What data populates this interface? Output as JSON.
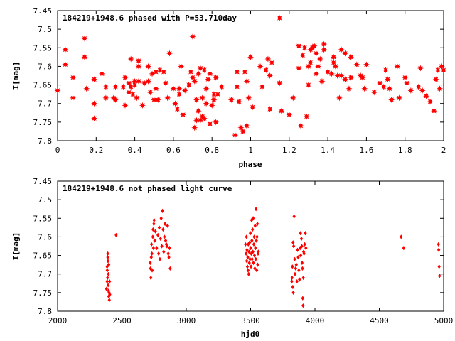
{
  "colors": {
    "marker": "#ff0000",
    "axes": "#000000",
    "background": "#ffffff"
  },
  "chart_data": [
    {
      "type": "scatter",
      "title": "184219+1948.6 phased with P=53.710day",
      "xlabel": "phase",
      "ylabel": "I[mag]",
      "xlim": [
        0,
        2
      ],
      "ylim": [
        7.8,
        7.45
      ],
      "y_inverted": true,
      "grid": false,
      "legend": "none",
      "marker": "filled-star",
      "x_ticks": [
        0,
        0.2,
        0.4,
        0.6,
        0.8,
        1,
        1.2,
        1.4,
        1.6,
        1.8,
        2
      ],
      "x_tick_labels": [
        "0",
        "0.2",
        "0.4",
        "0.6",
        "0.8",
        "1",
        "1.2",
        "1.4",
        "1.6",
        "1.8",
        "2"
      ],
      "y_ticks": [
        7.45,
        7.5,
        7.55,
        7.6,
        7.65,
        7.7,
        7.75,
        7.8
      ],
      "y_tick_labels": [
        "7.45",
        "7.5",
        "7.55",
        "7.6",
        "7.65",
        "7.7",
        "7.75",
        "7.8"
      ],
      "points": [
        [
          0.0,
          7.665
        ],
        [
          0.04,
          7.555
        ],
        [
          0.04,
          7.595
        ],
        [
          0.08,
          7.63
        ],
        [
          0.08,
          7.685
        ],
        [
          0.14,
          7.525
        ],
        [
          0.14,
          7.575
        ],
        [
          0.15,
          7.66
        ],
        [
          0.19,
          7.635
        ],
        [
          0.19,
          7.7
        ],
        [
          0.19,
          7.74
        ],
        [
          0.23,
          7.62
        ],
        [
          0.25,
          7.655
        ],
        [
          0.25,
          7.685
        ],
        [
          0.29,
          7.685
        ],
        [
          0.3,
          7.655
        ],
        [
          0.3,
          7.69
        ],
        [
          0.34,
          7.655
        ],
        [
          0.35,
          7.63
        ],
        [
          0.35,
          7.705
        ],
        [
          0.37,
          7.645
        ],
        [
          0.37,
          7.67
        ],
        [
          0.38,
          7.655
        ],
        [
          0.38,
          7.58
        ],
        [
          0.39,
          7.675
        ],
        [
          0.4,
          7.65
        ],
        [
          0.4,
          7.64
        ],
        [
          0.41,
          7.685
        ],
        [
          0.42,
          7.585
        ],
        [
          0.42,
          7.6
        ],
        [
          0.42,
          7.64
        ],
        [
          0.44,
          7.705
        ],
        [
          0.45,
          7.645
        ],
        [
          0.47,
          7.6
        ],
        [
          0.47,
          7.64
        ],
        [
          0.48,
          7.67
        ],
        [
          0.49,
          7.62
        ],
        [
          0.5,
          7.69
        ],
        [
          0.51,
          7.615
        ],
        [
          0.51,
          7.66
        ],
        [
          0.52,
          7.69
        ],
        [
          0.53,
          7.61
        ],
        [
          0.55,
          7.615
        ],
        [
          0.56,
          7.645
        ],
        [
          0.57,
          7.685
        ],
        [
          0.58,
          7.565
        ],
        [
          0.6,
          7.66
        ],
        [
          0.61,
          7.7
        ],
        [
          0.62,
          7.715
        ],
        [
          0.63,
          7.675
        ],
        [
          0.63,
          7.66
        ],
        [
          0.64,
          7.6
        ],
        [
          0.65,
          7.73
        ],
        [
          0.66,
          7.665
        ],
        [
          0.68,
          7.65
        ],
        [
          0.69,
          7.615
        ],
        [
          0.7,
          7.63
        ],
        [
          0.7,
          7.52
        ],
        [
          0.71,
          7.64
        ],
        [
          0.71,
          7.765
        ],
        [
          0.72,
          7.69
        ],
        [
          0.72,
          7.745
        ],
        [
          0.73,
          7.62
        ],
        [
          0.73,
          7.72
        ],
        [
          0.74,
          7.605
        ],
        [
          0.74,
          7.745
        ],
        [
          0.75,
          7.735
        ],
        [
          0.75,
          7.685
        ],
        [
          0.76,
          7.61
        ],
        [
          0.76,
          7.74
        ],
        [
          0.77,
          7.7
        ],
        [
          0.77,
          7.66
        ],
        [
          0.78,
          7.635
        ],
        [
          0.79,
          7.62
        ],
        [
          0.79,
          7.755
        ],
        [
          0.8,
          7.705
        ],
        [
          0.81,
          7.69
        ],
        [
          0.81,
          7.675
        ],
        [
          0.82,
          7.63
        ],
        [
          0.82,
          7.75
        ],
        [
          0.83,
          7.675
        ],
        [
          0.85,
          7.655
        ],
        [
          0.9,
          7.69
        ],
        [
          0.92,
          7.785
        ],
        [
          0.93,
          7.615
        ],
        [
          0.93,
          7.655
        ],
        [
          0.94,
          7.695
        ],
        [
          0.95,
          7.765
        ],
        [
          0.96,
          7.775
        ],
        [
          0.97,
          7.615
        ],
        [
          0.98,
          7.76
        ],
        [
          0.98,
          7.64
        ],
        [
          0.99,
          7.685
        ],
        [
          1.0,
          7.575
        ],
        [
          1.01,
          7.71
        ],
        [
          1.05,
          7.6
        ],
        [
          1.06,
          7.655
        ],
        [
          1.08,
          7.61
        ],
        [
          1.09,
          7.58
        ],
        [
          1.1,
          7.625
        ],
        [
          1.1,
          7.715
        ],
        [
          1.11,
          7.59
        ],
        [
          1.15,
          7.645
        ],
        [
          1.15,
          7.47
        ],
        [
          1.16,
          7.72
        ],
        [
          1.2,
          7.73
        ],
        [
          1.22,
          7.685
        ],
        [
          1.25,
          7.545
        ],
        [
          1.25,
          7.605
        ],
        [
          1.26,
          7.76
        ],
        [
          1.27,
          7.57
        ],
        [
          1.28,
          7.55
        ],
        [
          1.29,
          7.735
        ],
        [
          1.3,
          7.6
        ],
        [
          1.3,
          7.65
        ],
        [
          1.31,
          7.555
        ],
        [
          1.31,
          7.59
        ],
        [
          1.32,
          7.55
        ],
        [
          1.33,
          7.545
        ],
        [
          1.34,
          7.62
        ],
        [
          1.34,
          7.565
        ],
        [
          1.35,
          7.6
        ],
        [
          1.36,
          7.58
        ],
        [
          1.37,
          7.64
        ],
        [
          1.38,
          7.555
        ],
        [
          1.38,
          7.54
        ],
        [
          1.4,
          7.615
        ],
        [
          1.42,
          7.62
        ],
        [
          1.43,
          7.59
        ],
        [
          1.43,
          7.575
        ],
        [
          1.44,
          7.6
        ],
        [
          1.45,
          7.625
        ],
        [
          1.46,
          7.685
        ],
        [
          1.47,
          7.625
        ],
        [
          1.47,
          7.555
        ],
        [
          1.49,
          7.635
        ],
        [
          1.49,
          7.565
        ],
        [
          1.51,
          7.66
        ],
        [
          1.52,
          7.575
        ],
        [
          1.52,
          7.63
        ],
        [
          1.55,
          7.595
        ],
        [
          1.57,
          7.625
        ],
        [
          1.58,
          7.63
        ],
        [
          1.59,
          7.66
        ],
        [
          1.6,
          7.595
        ],
        [
          1.64,
          7.67
        ],
        [
          1.67,
          7.645
        ],
        [
          1.69,
          7.655
        ],
        [
          1.7,
          7.61
        ],
        [
          1.71,
          7.635
        ],
        [
          1.72,
          7.66
        ],
        [
          1.73,
          7.69
        ],
        [
          1.76,
          7.6
        ],
        [
          1.77,
          7.685
        ],
        [
          1.8,
          7.63
        ],
        [
          1.81,
          7.645
        ],
        [
          1.83,
          7.665
        ],
        [
          1.87,
          7.655
        ],
        [
          1.88,
          7.605
        ],
        [
          1.89,
          7.665
        ],
        [
          1.91,
          7.68
        ],
        [
          1.93,
          7.695
        ],
        [
          1.95,
          7.72
        ],
        [
          1.96,
          7.635
        ],
        [
          1.97,
          7.61
        ],
        [
          1.98,
          7.66
        ],
        [
          1.99,
          7.6
        ],
        [
          2.0,
          7.61
        ]
      ]
    },
    {
      "type": "scatter",
      "title": "184219+1948.6 not phased light curve",
      "xlabel": "hjd0",
      "ylabel": "I[mag]",
      "xlim": [
        2000,
        5000
      ],
      "ylim": [
        7.8,
        7.45
      ],
      "y_inverted": true,
      "grid": false,
      "legend": "none",
      "marker": "filled-diamond",
      "x_ticks": [
        2000,
        2500,
        3000,
        3500,
        4000,
        4500,
        5000
      ],
      "x_tick_labels": [
        "2000",
        "2500",
        "3000",
        "3500",
        "4000",
        "4500",
        "5000"
      ],
      "y_ticks": [
        7.45,
        7.5,
        7.55,
        7.6,
        7.65,
        7.7,
        7.75,
        7.8
      ],
      "y_tick_labels": [
        "7.45",
        "7.5",
        "7.55",
        "7.6",
        "7.65",
        "7.7",
        "7.75",
        "7.8"
      ],
      "points": [
        [
          2380,
          7.74
        ],
        [
          2385,
          7.72
        ],
        [
          2385,
          7.68
        ],
        [
          2386,
          7.69
        ],
        [
          2388,
          7.71
        ],
        [
          2390,
          7.655
        ],
        [
          2390,
          7.645
        ],
        [
          2392,
          7.665
        ],
        [
          2393,
          7.73
        ],
        [
          2395,
          7.7
        ],
        [
          2396,
          7.745
        ],
        [
          2398,
          7.76
        ],
        [
          2398,
          7.675
        ],
        [
          2400,
          7.75
        ],
        [
          2402,
          7.77
        ],
        [
          2404,
          7.72
        ],
        [
          2406,
          7.755
        ],
        [
          2455,
          7.595
        ],
        [
          2720,
          7.67
        ],
        [
          2722,
          7.685
        ],
        [
          2725,
          7.71
        ],
        [
          2728,
          7.655
        ],
        [
          2730,
          7.62
        ],
        [
          2733,
          7.645
        ],
        [
          2735,
          7.69
        ],
        [
          2740,
          7.6
        ],
        [
          2742,
          7.58
        ],
        [
          2745,
          7.63
        ],
        [
          2748,
          7.565
        ],
        [
          2750,
          7.555
        ],
        [
          2755,
          7.61
        ],
        [
          2760,
          7.585
        ],
        [
          2770,
          7.63
        ],
        [
          2780,
          7.595
        ],
        [
          2785,
          7.645
        ],
        [
          2790,
          7.575
        ],
        [
          2795,
          7.66
        ],
        [
          2800,
          7.605
        ],
        [
          2805,
          7.55
        ],
        [
          2810,
          7.625
        ],
        [
          2815,
          7.53
        ],
        [
          2820,
          7.58
        ],
        [
          2825,
          7.64
        ],
        [
          2830,
          7.6
        ],
        [
          2835,
          7.565
        ],
        [
          2840,
          7.61
        ],
        [
          2845,
          7.62
        ],
        [
          2850,
          7.625
        ],
        [
          2855,
          7.57
        ],
        [
          2860,
          7.645
        ],
        [
          2865,
          7.655
        ],
        [
          2870,
          7.63
        ],
        [
          2875,
          7.685
        ],
        [
          3460,
          7.62
        ],
        [
          3465,
          7.645
        ],
        [
          3468,
          7.6
        ],
        [
          3470,
          7.665
        ],
        [
          3472,
          7.635
        ],
        [
          3475,
          7.68
        ],
        [
          3478,
          7.655
        ],
        [
          3480,
          7.69
        ],
        [
          3482,
          7.62
        ],
        [
          3485,
          7.7
        ],
        [
          3488,
          7.64
        ],
        [
          3490,
          7.67
        ],
        [
          3493,
          7.615
        ],
        [
          3495,
          7.66
        ],
        [
          3498,
          7.59
        ],
        [
          3500,
          7.63
        ],
        [
          3503,
          7.68
        ],
        [
          3505,
          7.645
        ],
        [
          3508,
          7.555
        ],
        [
          3510,
          7.61
        ],
        [
          3512,
          7.66
        ],
        [
          3515,
          7.58
        ],
        [
          3518,
          7.64
        ],
        [
          3520,
          7.55
        ],
        [
          3522,
          7.67
        ],
        [
          3525,
          7.62
        ],
        [
          3528,
          7.6
        ],
        [
          3530,
          7.65
        ],
        [
          3533,
          7.685
        ],
        [
          3535,
          7.57
        ],
        [
          3538,
          7.63
        ],
        [
          3540,
          7.66
        ],
        [
          3542,
          7.525
        ],
        [
          3545,
          7.61
        ],
        [
          3548,
          7.69
        ],
        [
          3550,
          7.6
        ],
        [
          3553,
          7.565
        ],
        [
          3555,
          7.675
        ],
        [
          3558,
          7.645
        ],
        [
          3560,
          7.64
        ],
        [
          3820,
          7.72
        ],
        [
          3822,
          7.71
        ],
        [
          3825,
          7.68
        ],
        [
          3828,
          7.735
        ],
        [
          3830,
          7.615
        ],
        [
          3832,
          7.75
        ],
        [
          3835,
          7.625
        ],
        [
          3838,
          7.545
        ],
        [
          3842,
          7.66
        ],
        [
          3845,
          7.7
        ],
        [
          3850,
          7.685
        ],
        [
          3855,
          7.675
        ],
        [
          3860,
          7.72
        ],
        [
          3865,
          7.635
        ],
        [
          3870,
          7.655
        ],
        [
          3875,
          7.69
        ],
        [
          3880,
          7.715
        ],
        [
          3885,
          7.63
        ],
        [
          3888,
          7.59
        ],
        [
          3890,
          7.65
        ],
        [
          3895,
          7.605
        ],
        [
          3898,
          7.625
        ],
        [
          3900,
          7.67
        ],
        [
          3903,
          7.685
        ],
        [
          3905,
          7.765
        ],
        [
          3908,
          7.785
        ],
        [
          3910,
          7.71
        ],
        [
          3912,
          7.64
        ],
        [
          3915,
          7.645
        ],
        [
          3920,
          7.62
        ],
        [
          3925,
          7.59
        ],
        [
          3930,
          7.63
        ],
        [
          4670,
          7.6
        ],
        [
          4690,
          7.63
        ],
        [
          4960,
          7.62
        ],
        [
          4962,
          7.635
        ],
        [
          4965,
          7.68
        ],
        [
          4968,
          7.705
        ]
      ]
    }
  ]
}
